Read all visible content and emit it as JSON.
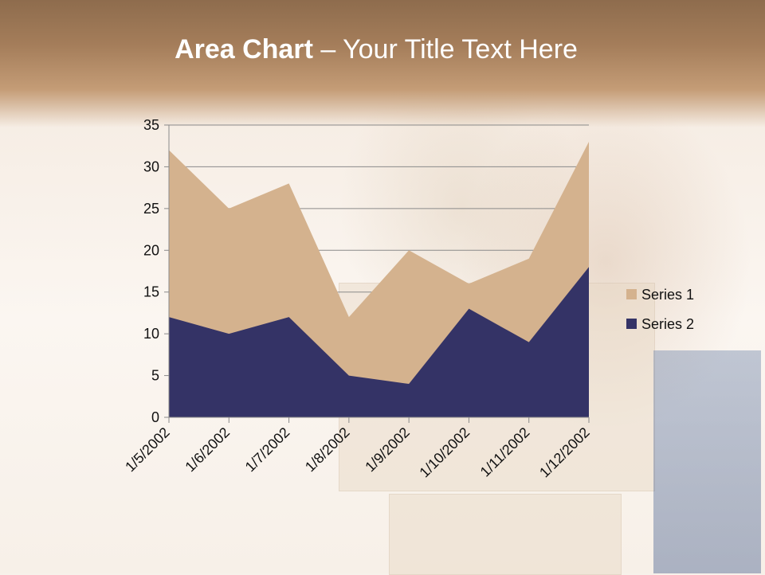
{
  "slide": {
    "title_bold": "Area Chart",
    "title_rest": " – Your Title Text Here"
  },
  "chart_data": {
    "type": "area",
    "categories": [
      "1/5/2002",
      "1/6/2002",
      "1/7/2002",
      "1/8/2002",
      "1/9/2002",
      "1/10/2002",
      "1/11/2002",
      "1/12/2002"
    ],
    "series": [
      {
        "name": "Series 1",
        "values": [
          32,
          25,
          28,
          12,
          20,
          16,
          19,
          33
        ],
        "color": "#d4b28e"
      },
      {
        "name": "Series 2",
        "values": [
          12,
          10,
          12,
          5,
          4,
          13,
          9,
          18
        ],
        "color": "#343366"
      }
    ],
    "ylim": [
      0,
      35
    ],
    "yticks": [
      0,
      5,
      10,
      15,
      20,
      25,
      30,
      35
    ],
    "grid": true,
    "legend": "right"
  }
}
